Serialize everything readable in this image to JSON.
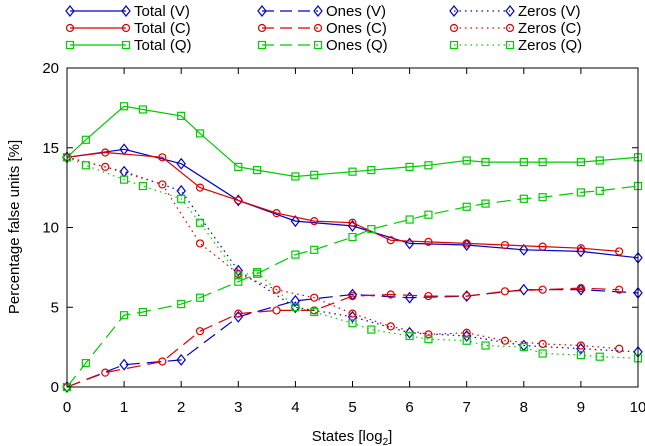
{
  "chart_data": {
    "type": "line",
    "title": "",
    "xlabel_main": "States [log",
    "xlabel_sub": "2",
    "xlabel_end": "]",
    "ylabel": "Percentage false units [%]",
    "xlim": [
      0,
      10
    ],
    "ylim": [
      0,
      20
    ],
    "x_ticks": [
      "0",
      "1",
      "2",
      "3",
      "4",
      "5",
      "6",
      "7",
      "8",
      "9",
      "10"
    ],
    "y_ticks": [
      "0",
      "5",
      "10",
      "15",
      "20"
    ],
    "grid": false,
    "legend_position": "top",
    "series": [
      {
        "name": "Total (V)",
        "color": "#0000cc",
        "marker": "diamond",
        "dash": "solid",
        "x": [
          0,
          1,
          2,
          3,
          4,
          5,
          6,
          7,
          8,
          9,
          10
        ],
        "y": [
          14.4,
          14.9,
          14.0,
          11.7,
          10.4,
          10.1,
          9.0,
          8.9,
          8.6,
          8.5,
          8.1
        ]
      },
      {
        "name": "Total (C)",
        "color": "#dd0000",
        "marker": "circle",
        "dash": "solid",
        "x": [
          0,
          0.67,
          1.67,
          2.33,
          3,
          3.67,
          4.33,
          5,
          5.67,
          6.33,
          7,
          7.67,
          8.33,
          9,
          9.67
        ],
        "y": [
          14.4,
          14.7,
          14.4,
          12.5,
          11.7,
          10.9,
          10.4,
          10.3,
          9.2,
          9.1,
          9.0,
          8.9,
          8.8,
          8.7,
          8.5
        ]
      },
      {
        "name": "Total (Q)",
        "color": "#00cc00",
        "marker": "square",
        "dash": "solid",
        "x": [
          0,
          0.33,
          1,
          1.33,
          2,
          2.33,
          3,
          3.33,
          4,
          4.33,
          5,
          5.33,
          6,
          6.33,
          7,
          7.33,
          8,
          8.33,
          9,
          9.33,
          10
        ],
        "y": [
          14.4,
          15.5,
          17.6,
          17.4,
          17.0,
          15.9,
          13.8,
          13.6,
          13.2,
          13.3,
          13.5,
          13.6,
          13.8,
          13.9,
          14.2,
          14.1,
          14.1,
          14.1,
          14.1,
          14.2,
          14.4
        ]
      },
      {
        "name": "Ones (V)",
        "color": "#0000cc",
        "marker": "diamond",
        "dash": "dashed",
        "x": [
          0,
          1,
          2,
          3,
          4,
          5,
          6,
          7,
          8,
          9,
          10
        ],
        "y": [
          0,
          1.4,
          1.7,
          4.4,
          5.4,
          5.8,
          5.6,
          5.7,
          6.1,
          6.1,
          5.9
        ]
      },
      {
        "name": "Ones (C)",
        "color": "#dd0000",
        "marker": "circle",
        "dash": "dashed",
        "x": [
          0,
          0.67,
          1.67,
          2.33,
          3,
          3.67,
          4.33,
          5,
          5.67,
          6.33,
          7,
          7.67,
          8.33,
          9,
          9.67
        ],
        "y": [
          0,
          0.9,
          1.6,
          3.5,
          4.6,
          4.8,
          4.8,
          5.7,
          5.8,
          5.7,
          5.7,
          6.0,
          6.1,
          6.2,
          6.1
        ]
      },
      {
        "name": "Ones (Q)",
        "color": "#00cc00",
        "marker": "square",
        "dash": "dashed",
        "x": [
          0,
          0.33,
          1,
          1.33,
          2,
          2.33,
          3,
          3.33,
          4,
          4.33,
          5,
          5.33,
          6,
          6.33,
          7,
          7.33,
          8,
          8.33,
          9,
          9.33,
          10
        ],
        "y": [
          0,
          1.5,
          4.5,
          4.7,
          5.2,
          5.6,
          6.6,
          7.1,
          8.3,
          8.6,
          9.4,
          9.9,
          10.5,
          10.8,
          11.3,
          11.5,
          11.8,
          11.9,
          12.2,
          12.3,
          12.6
        ]
      },
      {
        "name": "Zeros (V)",
        "color": "#0000cc",
        "marker": "diamond",
        "dash": "dotted",
        "x": [
          0,
          1,
          2,
          3,
          4,
          5,
          6,
          7,
          8,
          9,
          10
        ],
        "y": [
          14.4,
          13.5,
          12.3,
          7.3,
          5.0,
          4.4,
          3.4,
          3.2,
          2.6,
          2.4,
          2.2
        ]
      },
      {
        "name": "Zeros (C)",
        "color": "#dd0000",
        "marker": "circle",
        "dash": "dotted",
        "x": [
          0,
          0.67,
          1.67,
          2.33,
          3,
          3.67,
          4.33,
          5,
          5.67,
          6.33,
          7,
          7.67,
          8.33,
          9,
          9.67
        ],
        "y": [
          14.4,
          13.8,
          12.7,
          9.0,
          7.1,
          6.1,
          5.6,
          4.6,
          3.8,
          3.3,
          3.4,
          2.9,
          2.7,
          2.6,
          2.4
        ]
      },
      {
        "name": "Zeros (Q)",
        "color": "#00cc00",
        "marker": "square",
        "dash": "dotted",
        "x": [
          0,
          0.33,
          1,
          1.33,
          2,
          2.33,
          3,
          3.33,
          4,
          4.33,
          5,
          5.33,
          6,
          6.33,
          7,
          7.33,
          8,
          8.33,
          9,
          9.33,
          10
        ],
        "y": [
          14.4,
          13.9,
          13.0,
          12.6,
          11.8,
          10.3,
          7.0,
          7.2,
          5.0,
          4.7,
          4.0,
          3.6,
          3.2,
          3.0,
          2.9,
          2.6,
          2.5,
          2.1,
          2.0,
          1.9,
          1.8
        ]
      }
    ]
  }
}
